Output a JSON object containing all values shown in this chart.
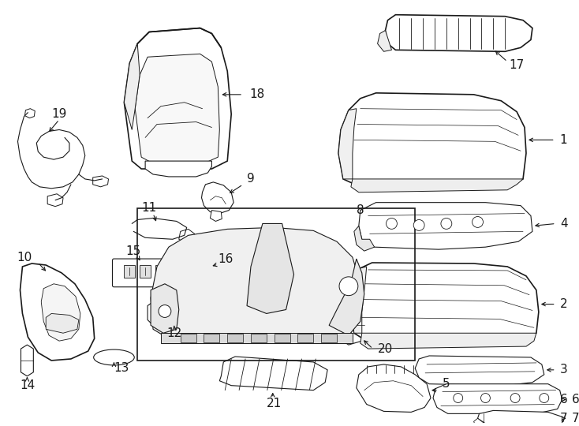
{
  "background_color": "#ffffff",
  "line_color": "#1a1a1a",
  "fig_width": 7.34,
  "fig_height": 5.4,
  "dpi": 100,
  "label_fontsize": 11,
  "label_fontsize_sm": 9
}
